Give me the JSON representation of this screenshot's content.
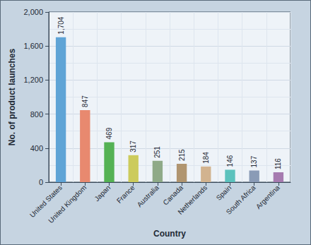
{
  "chart_data": {
    "type": "bar",
    "xlabel": "Country",
    "ylabel": "No. of product launches",
    "categories": [
      "United States",
      "United Kingdom",
      "Japan",
      "France",
      "Australia",
      "Canada",
      "Netherlands",
      "Spain",
      "South Africa",
      "Argentina"
    ],
    "values": [
      1704,
      847,
      469,
      317,
      251,
      215,
      184,
      146,
      137,
      116
    ],
    "value_labels": [
      "1,704",
      "847",
      "469",
      "317",
      "251",
      "215",
      "184",
      "146",
      "137",
      "116"
    ],
    "colors": [
      "#5fa4d6",
      "#e8896f",
      "#55b254",
      "#cccb5c",
      "#8faa88",
      "#b09570",
      "#d2b38f",
      "#5cc2bd",
      "#8a9bb6",
      "#a67bb0"
    ],
    "ylim": [
      0,
      2000
    ],
    "yticks": [
      0,
      400,
      800,
      {
        "value": 1200,
        "label": "1,200"
      },
      {
        "value": 1600,
        "label": "1,600"
      },
      {
        "value": 2000,
        "label": "2,000"
      }
    ],
    "grid": true,
    "data_labels": true
  }
}
